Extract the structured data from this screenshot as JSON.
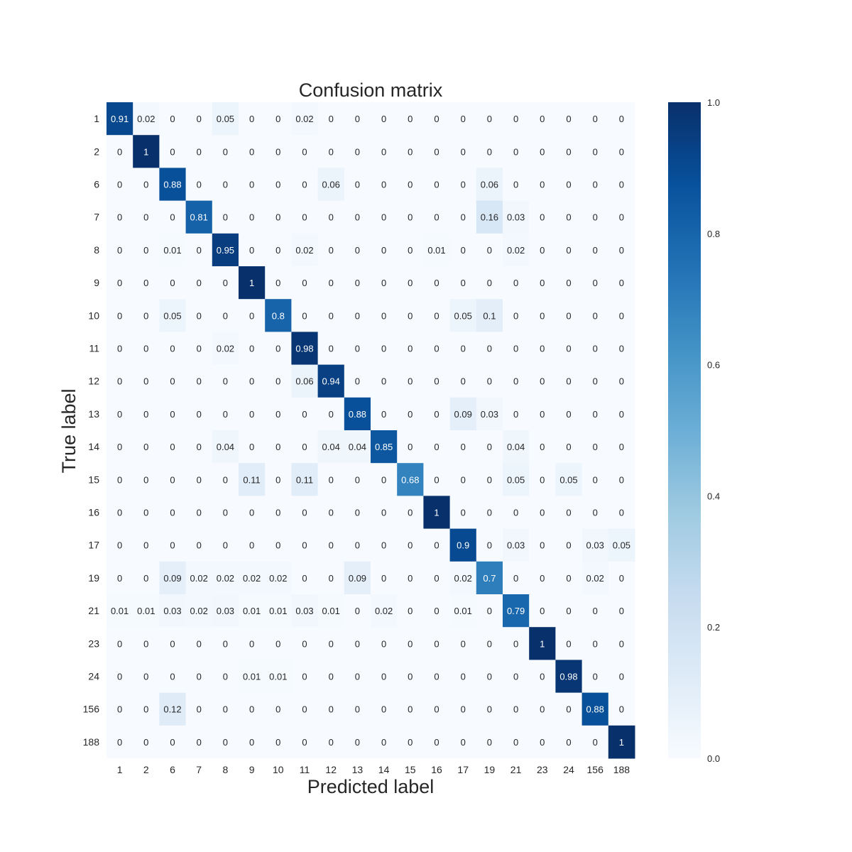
{
  "chart_data": {
    "type": "heatmap",
    "title": "Confusion matrix",
    "xlabel": "Predicted label",
    "ylabel": "True label",
    "x_categories": [
      "1",
      "2",
      "6",
      "7",
      "8",
      "9",
      "10",
      "11",
      "12",
      "13",
      "14",
      "15",
      "16",
      "17",
      "19",
      "21",
      "23",
      "24",
      "156",
      "188"
    ],
    "y_categories": [
      "1",
      "2",
      "6",
      "7",
      "8",
      "9",
      "10",
      "11",
      "12",
      "13",
      "14",
      "15",
      "16",
      "17",
      "19",
      "21",
      "23",
      "24",
      "156",
      "188"
    ],
    "values": [
      [
        0.91,
        0.02,
        0,
        0,
        0.05,
        0,
        0,
        0.02,
        0,
        0,
        0,
        0,
        0,
        0,
        0,
        0,
        0,
        0,
        0,
        0
      ],
      [
        0,
        1,
        0,
        0,
        0,
        0,
        0,
        0,
        0,
        0,
        0,
        0,
        0,
        0,
        0,
        0,
        0,
        0,
        0,
        0
      ],
      [
        0,
        0,
        0.88,
        0,
        0,
        0,
        0,
        0,
        0.06,
        0,
        0,
        0,
        0,
        0,
        0.06,
        0,
        0,
        0,
        0,
        0
      ],
      [
        0,
        0,
        0,
        0.81,
        0,
        0,
        0,
        0,
        0,
        0,
        0,
        0,
        0,
        0,
        0.16,
        0.03,
        0,
        0,
        0,
        0
      ],
      [
        0,
        0,
        0.01,
        0,
        0.95,
        0,
        0,
        0.02,
        0,
        0,
        0,
        0,
        0.01,
        0,
        0,
        0.02,
        0,
        0,
        0,
        0
      ],
      [
        0,
        0,
        0,
        0,
        0,
        1,
        0,
        0,
        0,
        0,
        0,
        0,
        0,
        0,
        0,
        0,
        0,
        0,
        0,
        0
      ],
      [
        0,
        0,
        0.05,
        0,
        0,
        0,
        0.8,
        0,
        0,
        0,
        0,
        0,
        0,
        0.05,
        0.1,
        0,
        0,
        0,
        0,
        0
      ],
      [
        0,
        0,
        0,
        0,
        0.02,
        0,
        0,
        0.98,
        0,
        0,
        0,
        0,
        0,
        0,
        0,
        0,
        0,
        0,
        0,
        0
      ],
      [
        0,
        0,
        0,
        0,
        0,
        0,
        0,
        0.06,
        0.94,
        0,
        0,
        0,
        0,
        0,
        0,
        0,
        0,
        0,
        0,
        0
      ],
      [
        0,
        0,
        0,
        0,
        0,
        0,
        0,
        0,
        0,
        0.88,
        0,
        0,
        0,
        0.09,
        0.03,
        0,
        0,
        0,
        0,
        0
      ],
      [
        0,
        0,
        0,
        0,
        0.04,
        0,
        0,
        0,
        0.04,
        0.04,
        0.85,
        0,
        0,
        0,
        0,
        0.04,
        0,
        0,
        0,
        0
      ],
      [
        0,
        0,
        0,
        0,
        0,
        0.11,
        0,
        0.11,
        0,
        0,
        0,
        0.68,
        0,
        0,
        0,
        0.05,
        0,
        0.05,
        0,
        0
      ],
      [
        0,
        0,
        0,
        0,
        0,
        0,
        0,
        0,
        0,
        0,
        0,
        0,
        1,
        0,
        0,
        0,
        0,
        0,
        0,
        0
      ],
      [
        0,
        0,
        0,
        0,
        0,
        0,
        0,
        0,
        0,
        0,
        0,
        0,
        0,
        0.9,
        0,
        0.03,
        0,
        0,
        0.03,
        0.05
      ],
      [
        0,
        0,
        0.09,
        0.02,
        0.02,
        0.02,
        0.02,
        0,
        0,
        0.09,
        0,
        0,
        0,
        0.02,
        0.7,
        0,
        0,
        0,
        0.02,
        0
      ],
      [
        0.01,
        0.01,
        0.03,
        0.02,
        0.03,
        0.01,
        0.01,
        0.03,
        0.01,
        0,
        0.02,
        0,
        0,
        0.01,
        0,
        0.79,
        0,
        0,
        0,
        0
      ],
      [
        0,
        0,
        0,
        0,
        0,
        0,
        0,
        0,
        0,
        0,
        0,
        0,
        0,
        0,
        0,
        0,
        1,
        0,
        0,
        0
      ],
      [
        0,
        0,
        0,
        0,
        0,
        0.01,
        0.01,
        0,
        0,
        0,
        0,
        0,
        0,
        0,
        0,
        0,
        0,
        0.98,
        0,
        0
      ],
      [
        0,
        0,
        0.12,
        0,
        0,
        0,
        0,
        0,
        0,
        0,
        0,
        0,
        0,
        0,
        0,
        0,
        0,
        0,
        0.88,
        0
      ],
      [
        0,
        0,
        0,
        0,
        0,
        0,
        0,
        0,
        0,
        0,
        0,
        0,
        0,
        0,
        0,
        0,
        0,
        0,
        0,
        1
      ]
    ],
    "vmin": 0,
    "vmax": 1,
    "colormap": "Blues",
    "colorbar_ticks": [
      "0.0",
      "0.2",
      "0.4",
      "0.6",
      "0.8",
      "1.0"
    ],
    "colors": {
      "low": "#f7fbff",
      "high": "#08306b",
      "text_dark": "#262626",
      "text_light": "#ffffff"
    }
  }
}
